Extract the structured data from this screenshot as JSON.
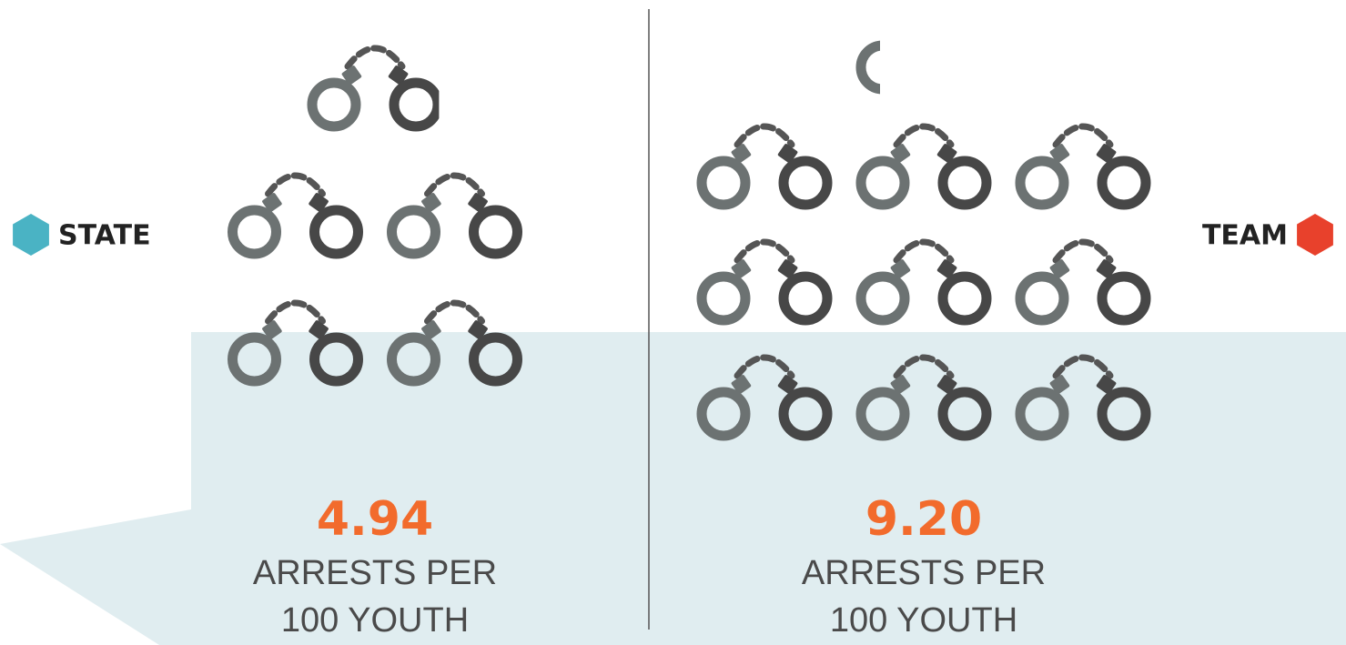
{
  "chart_data": {
    "type": "pictograph",
    "unit_label": [
      "ARRESTS PER",
      "100 YOUTH"
    ],
    "series": [
      {
        "name": "STATE",
        "color": "#4ab3c4",
        "values": [
          4.94
        ],
        "value_labels": [
          "4.94"
        ]
      },
      {
        "name": "TEAM",
        "color": "#e8412c",
        "values": [
          9.2
        ],
        "value_labels": [
          "9.20"
        ]
      }
    ]
  }
}
